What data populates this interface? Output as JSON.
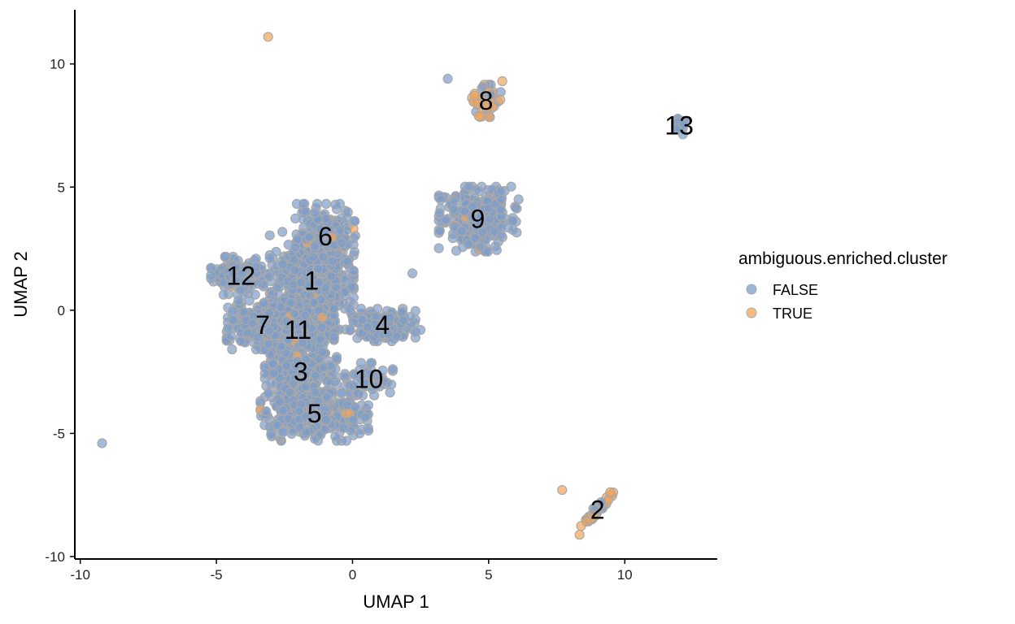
{
  "chart_data": {
    "type": "scatter",
    "xlabel": "UMAP 1",
    "ylabel": "UMAP 2",
    "xlim": [
      -10.2,
      13.4
    ],
    "ylim": [
      -10.1,
      12.2
    ],
    "x_ticks": [
      -10,
      -5,
      0,
      5,
      10
    ],
    "y_ticks": [
      -10,
      -5,
      0,
      5,
      10
    ],
    "x_tick_labels": [
      "-10",
      "-5",
      "0",
      "5",
      "10"
    ],
    "y_tick_labels": [
      "-10",
      "-5",
      "0",
      "5",
      "10"
    ],
    "grid": false,
    "legend": {
      "title": "ambiguous.enriched.cluster",
      "placement": "right",
      "entries": [
        {
          "label": "FALSE",
          "color": "#7c9ccb"
        },
        {
          "label": "TRUE",
          "color": "#f3a55a"
        }
      ]
    },
    "colors": {
      "FALSE": "#7c9ccb",
      "TRUE": "#f3a55a",
      "outline": "#a8a8a8"
    },
    "clusters": [
      {
        "label": "1",
        "x": -1.5,
        "y": 1.2,
        "spread": [
          0.7,
          0.9
        ],
        "n": 650,
        "ambiguous": false
      },
      {
        "label": "6",
        "x": -1.0,
        "y": 3.0,
        "spread": [
          0.5,
          0.6
        ],
        "n": 200,
        "ambiguous": false
      },
      {
        "label": "12",
        "x": -4.1,
        "y": 1.4,
        "spread": [
          0.5,
          0.35
        ],
        "n": 160,
        "ambiguous": false
      },
      {
        "label": "7",
        "x": -3.3,
        "y": -0.6,
        "spread": [
          0.6,
          0.45
        ],
        "n": 260,
        "ambiguous": false
      },
      {
        "label": "11",
        "x": -2.0,
        "y": -0.8,
        "spread": [
          0.6,
          0.5
        ],
        "n": 300,
        "ambiguous": false
      },
      {
        "label": "3",
        "x": -1.9,
        "y": -2.5,
        "spread": [
          0.6,
          0.6
        ],
        "n": 320,
        "ambiguous": false
      },
      {
        "label": "5",
        "x": -1.4,
        "y": -4.2,
        "spread": [
          0.9,
          0.5
        ],
        "n": 380,
        "ambiguous": false
      },
      {
        "label": "4",
        "x": 1.1,
        "y": -0.6,
        "spread": [
          0.55,
          0.3
        ],
        "n": 180,
        "ambiguous": false
      },
      {
        "label": "10",
        "x": 0.6,
        "y": -2.8,
        "spread": [
          0.4,
          0.3
        ],
        "n": 70,
        "ambiguous": false
      },
      {
        "label": "9",
        "x": 4.6,
        "y": 3.7,
        "spread": [
          0.65,
          0.6
        ],
        "n": 320,
        "ambiguous": false
      },
      {
        "label": "8",
        "x": 4.9,
        "y": 8.5,
        "spread": [
          0.25,
          0.3
        ],
        "n": 50,
        "ambiguous": true
      },
      {
        "label": "13",
        "x": 12.0,
        "y": 7.5,
        "spread": [
          0.12,
          0.18
        ],
        "n": 18,
        "ambiguous": false
      },
      {
        "label": "2",
        "x": 9.0,
        "y": -8.1,
        "spread": [
          0.22,
          0.35
        ],
        "n": 55,
        "ambiguous": true
      }
    ],
    "outliers": [
      {
        "x": -3.1,
        "y": 11.1,
        "ambiguous": true
      },
      {
        "x": -9.2,
        "y": -5.4,
        "ambiguous": false
      },
      {
        "x": 3.5,
        "y": 9.4,
        "ambiguous": false
      },
      {
        "x": 7.7,
        "y": -7.3,
        "ambiguous": true
      },
      {
        "x": 5.5,
        "y": 9.3,
        "ambiguous": true
      },
      {
        "x": 6.1,
        "y": 4.5,
        "ambiguous": false
      },
      {
        "x": 2.5,
        "y": -0.8,
        "ambiguous": false
      },
      {
        "x": 2.2,
        "y": 1.5,
        "ambiguous": false
      }
    ]
  }
}
